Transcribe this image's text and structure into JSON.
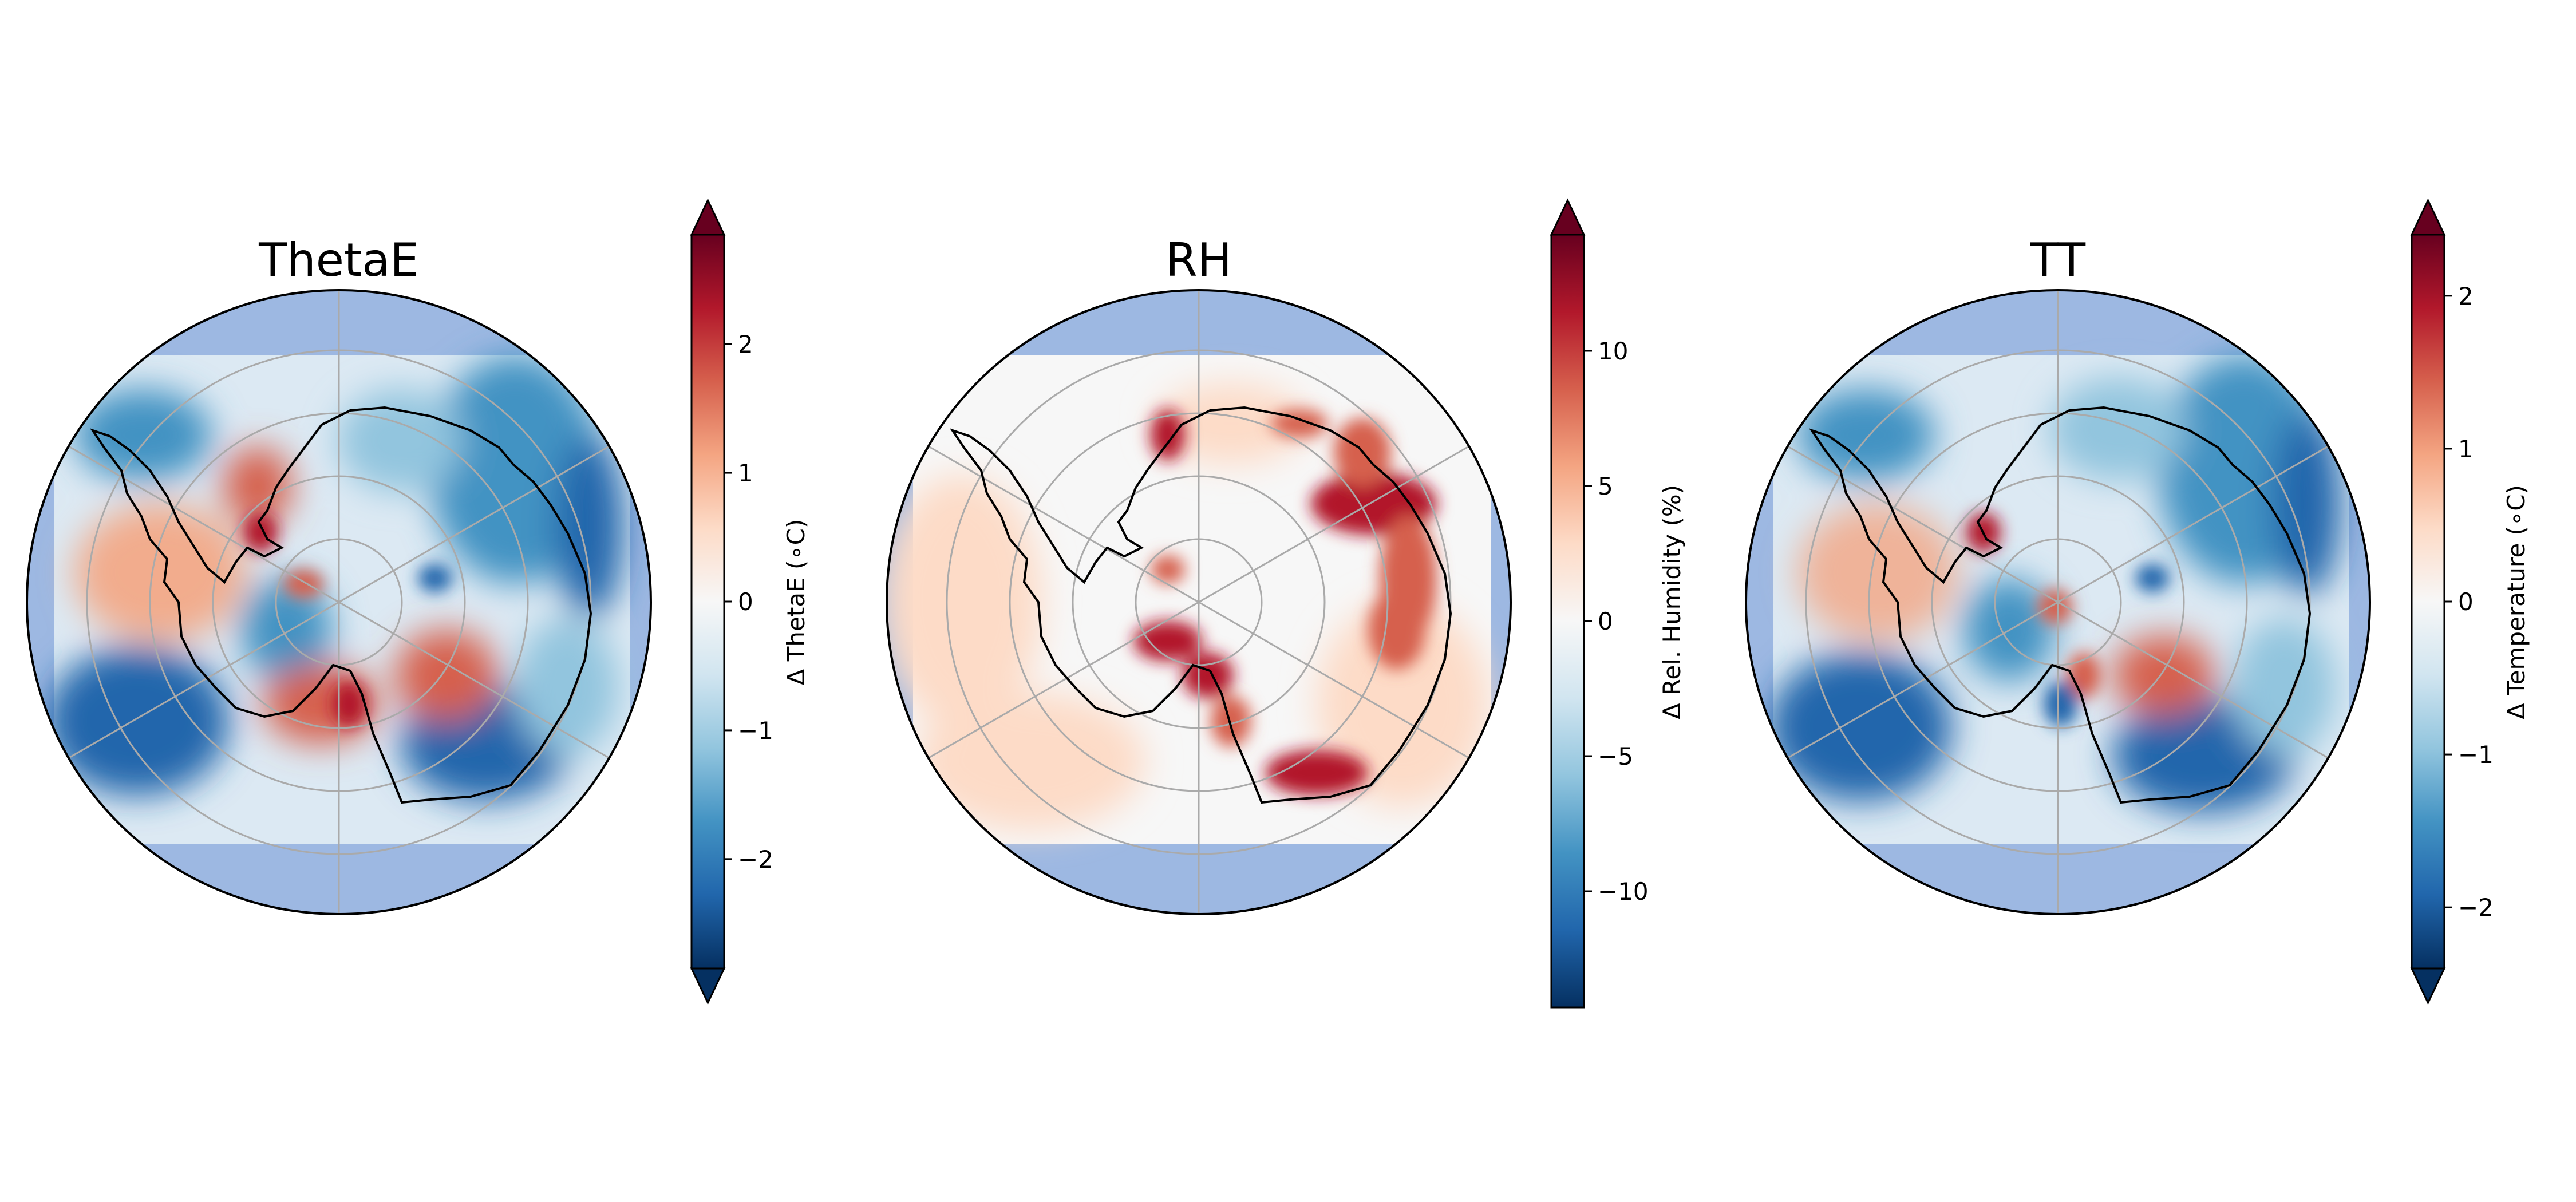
{
  "panels": [
    {
      "title": "ThetaE",
      "colorbar": {
        "label": "Δ ThetaE (∘C)",
        "range": [
          -2.85,
          2.85
        ],
        "ticks": [
          {
            "value": -2,
            "label": "−2"
          },
          {
            "value": -1,
            "label": "−1"
          },
          {
            "value": 0,
            "label": "0"
          },
          {
            "value": 1,
            "label": "1"
          },
          {
            "value": 2,
            "label": "2"
          }
        ],
        "extend": "both"
      }
    },
    {
      "title": "RH",
      "colorbar": {
        "label": "Δ Rel. Humidity (%)",
        "range": [
          -14.3,
          14.3
        ],
        "ticks": [
          {
            "value": -10,
            "label": "−10"
          },
          {
            "value": -5,
            "label": "−5"
          },
          {
            "value": 0,
            "label": "0"
          },
          {
            "value": 5,
            "label": "5"
          },
          {
            "value": 10,
            "label": "10"
          }
        ],
        "extend": "max"
      }
    },
    {
      "title": "TT",
      "colorbar": {
        "label": "Δ Temperature (∘C)",
        "range": [
          -2.4,
          2.4
        ],
        "ticks": [
          {
            "value": -2,
            "label": "−2"
          },
          {
            "value": -1,
            "label": "−1"
          },
          {
            "value": 0,
            "label": "0"
          },
          {
            "value": 1,
            "label": "1"
          },
          {
            "value": 2,
            "label": "2"
          }
        ],
        "extend": "both"
      }
    }
  ],
  "colors": {
    "ocean_fill": "#9db8e2",
    "continent_outline": "#000000",
    "gridline": "#aaaaaa",
    "colormap": "RdBu_r"
  }
}
